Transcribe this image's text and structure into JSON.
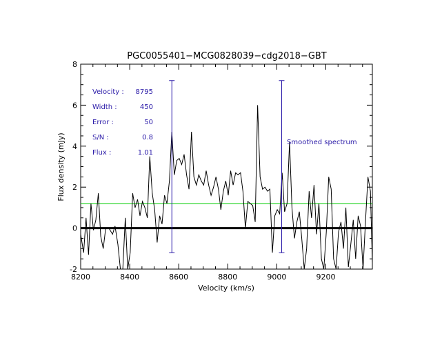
{
  "chart_data": {
    "type": "line",
    "title": "PGC0055401−MCG0828039−cdg2018−GBT",
    "xlabel": "Velocity (km/s)",
    "ylabel": "Flux density (mJy)",
    "xlim": [
      8200,
      9390
    ],
    "ylim": [
      -2,
      8
    ],
    "x_ticks": [
      8200,
      8400,
      8600,
      8800,
      9000,
      9200
    ],
    "y_ticks": [
      -2,
      0,
      2,
      4,
      6,
      8
    ],
    "grid": false,
    "colors": {
      "spectrum": "#000000",
      "baseline": "#000000",
      "smoothed": "#00cc00",
      "markers": "#2a1aa8",
      "annotations": "#2a1aa8"
    },
    "baseline_y": 0,
    "smoothed_level": 1.2,
    "smoothed_label": "Smoothed spectrum",
    "markers": [
      {
        "x": 8572,
        "y_top": 7.2,
        "y_bottom": -1.2
      },
      {
        "x": 9020,
        "y_top": 7.2,
        "y_bottom": -1.2
      }
    ],
    "annotations": [
      {
        "label": "Velocity :",
        "value": "8795"
      },
      {
        "label": "Width :",
        "value": "450"
      },
      {
        "label": "Error :",
        "value": "50"
      },
      {
        "label": "S/N :",
        "value": "0.8"
      },
      {
        "label": "Flux :",
        "value": "1.01"
      }
    ],
    "series": [
      {
        "name": "spectrum",
        "x": [
          8200,
          8212,
          8222,
          8232,
          8242,
          8252,
          8262,
          8272,
          8282,
          8292,
          8302,
          8315,
          8330,
          8340,
          8352,
          8362,
          8372,
          8382,
          8392,
          8402,
          8412,
          8422,
          8432,
          8442,
          8452,
          8462,
          8472,
          8482,
          8492,
          8502,
          8512,
          8522,
          8532,
          8542,
          8552,
          8562,
          8572,
          8582,
          8592,
          8602,
          8612,
          8622,
          8632,
          8642,
          8652,
          8662,
          8672,
          8682,
          8692,
          8702,
          8712,
          8722,
          8732,
          8742,
          8752,
          8762,
          8772,
          8782,
          8792,
          8802,
          8812,
          8822,
          8832,
          8842,
          8852,
          8862,
          8872,
          8882,
          8892,
          8902,
          8912,
          8922,
          8932,
          8942,
          8952,
          8962,
          8972,
          8982,
          8992,
          9002,
          9012,
          9022,
          9032,
          9042,
          9052,
          9062,
          9072,
          9082,
          9092,
          9102,
          9112,
          9122,
          9132,
          9142,
          9152,
          9162,
          9172,
          9182,
          9192,
          9202,
          9212,
          9222,
          9232,
          9242,
          9252,
          9262,
          9272,
          9282,
          9292,
          9302,
          9312,
          9322,
          9332,
          9342,
          9352,
          9362,
          9372,
          9382,
          9390
        ],
        "values": [
          -0.3,
          -1.2,
          0.5,
          -1.3,
          1.2,
          -0.1,
          0.4,
          1.7,
          -0.4,
          -1.0,
          0.0,
          0.0,
          -0.3,
          0.1,
          -0.8,
          -2.0,
          -2.0,
          0.5,
          -2.0,
          -1.2,
          1.7,
          1.0,
          1.4,
          0.6,
          1.3,
          1.0,
          0.5,
          3.5,
          1.7,
          0.9,
          -0.7,
          0.6,
          0.2,
          1.6,
          1.2,
          2.3,
          4.7,
          2.6,
          3.3,
          3.4,
          3.1,
          3.6,
          2.6,
          1.9,
          4.7,
          2.5,
          2.1,
          2.6,
          2.3,
          2.1,
          2.8,
          2.1,
          1.6,
          2.0,
          2.5,
          1.9,
          0.9,
          1.8,
          2.3,
          1.6,
          2.8,
          2.1,
          2.7,
          2.6,
          2.7,
          1.8,
          0.0,
          1.3,
          1.2,
          1.1,
          0.3,
          6.0,
          2.5,
          1.9,
          2.0,
          1.8,
          1.9,
          -1.2,
          0.6,
          0.9,
          0.7,
          2.7,
          0.8,
          1.2,
          4.2,
          1.0,
          -0.5,
          0.3,
          0.8,
          -0.5,
          -2.0,
          -1.0,
          1.8,
          0.5,
          2.1,
          -0.3,
          1.2,
          -1.5,
          -2.0,
          -0.2,
          2.5,
          1.9,
          -1.5,
          -2.0,
          -0.2,
          0.3,
          -1.0,
          1.0,
          -1.9,
          -0.8,
          0.4,
          -1.5,
          0.6,
          0.1,
          -2.0,
          0.3,
          2.5,
          1.8,
          -1.7
        ]
      }
    ]
  }
}
